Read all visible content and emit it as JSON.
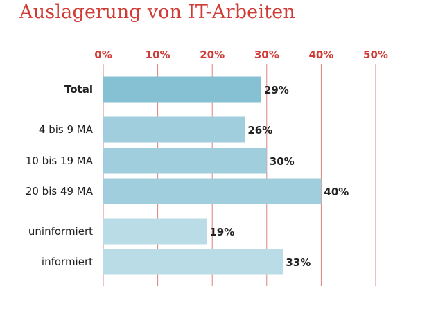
{
  "chart_data": {
    "type": "bar",
    "orientation": "horizontal",
    "title": "Auslagerung von IT-Arbeiten",
    "xlabel": "",
    "ylabel": "",
    "xlim": [
      0,
      50
    ],
    "x_ticks": [
      "0%",
      "10%",
      "20%",
      "30%",
      "40%",
      "50%"
    ],
    "tick_position": "top",
    "grid": true,
    "categories": [
      "Total",
      "4 bis 9 MA",
      "10 bis 19 MA",
      "20 bis 49 MA",
      "uninformiert",
      "informiert"
    ],
    "values": [
      29,
      26,
      30,
      40,
      19,
      33
    ],
    "data_labels": [
      "29%",
      "26%",
      "30%",
      "40%",
      "19%",
      "33%"
    ],
    "bold_categories": [
      "Total"
    ],
    "groups": [
      {
        "members": [
          "Total"
        ],
        "color": "#86c0d3"
      },
      {
        "members": [
          "4 bis 9 MA",
          "10 bis 19 MA",
          "20 bis 49 MA"
        ],
        "color": "#a1cedc"
      },
      {
        "members": [
          "uninformiert",
          "informiert"
        ],
        "color": "#b9dce6"
      }
    ],
    "colors": {
      "title": "#cf3b35",
      "ticks": "#cf3b35",
      "gridline": "#d9827c",
      "text": "#222222"
    }
  }
}
